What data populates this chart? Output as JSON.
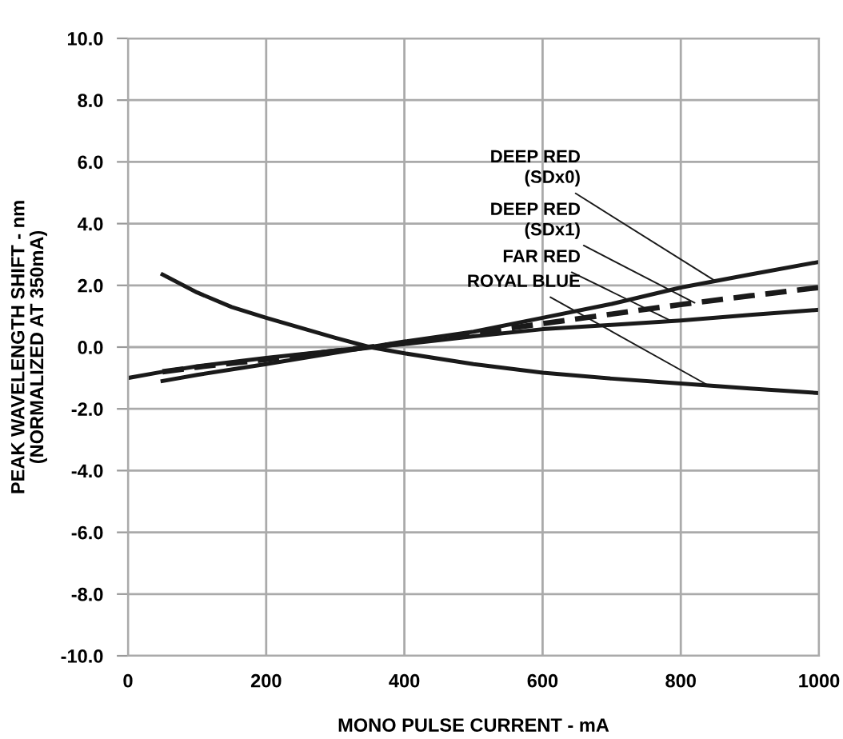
{
  "chart_data": {
    "type": "line",
    "xlabel": "MONO PULSE CURRENT - mA",
    "ylabel": "PEAK WAVELENGTH SHIFT - nm\n(NORMALIZED AT 350mA)",
    "xlim": [
      0,
      1000
    ],
    "xticks": [
      0,
      200,
      400,
      600,
      800,
      1000
    ],
    "ylim": [
      -10,
      10
    ],
    "yticks": [
      {
        "value": -10,
        "label": "-10.0"
      },
      {
        "value": -8,
        "label": "-8.0"
      },
      {
        "value": -6,
        "label": "-6.0"
      },
      {
        "value": -4,
        "label": "-4.0"
      },
      {
        "value": -2,
        "label": "-2.0"
      },
      {
        "value": 0,
        "label": "0.0"
      },
      {
        "value": 2,
        "label": "2.0"
      },
      {
        "value": 4,
        "label": "4.0"
      },
      {
        "value": 6,
        "label": "6.0"
      },
      {
        "value": 8,
        "label": "8.0"
      },
      {
        "value": 10,
        "label": "10.0"
      }
    ],
    "grid": true,
    "legend": false,
    "marker": "none",
    "series": [
      {
        "name": "DEEP RED\n(SDx0)",
        "color": "#1a1a1a",
        "line_style": "solid",
        "x": [
          50,
          100,
          200,
          300,
          350,
          400,
          500,
          600,
          700,
          800,
          900,
          1000
        ],
        "values": [
          -1.1,
          -0.9,
          -0.55,
          -0.18,
          0,
          0.18,
          0.5,
          0.95,
          1.4,
          1.93,
          2.35,
          2.76
        ]
      },
      {
        "name": "DEEP RED\n(SDx1)",
        "color": "#1a1a1a",
        "line_style": "dashed",
        "x": [
          50,
          100,
          200,
          300,
          350,
          400,
          500,
          600,
          700,
          800,
          900,
          1000
        ],
        "values": [
          -0.8,
          -0.65,
          -0.4,
          -0.13,
          0,
          0.13,
          0.45,
          0.76,
          1.07,
          1.38,
          1.66,
          1.93
        ]
      },
      {
        "name": "FAR RED",
        "color": "#1a1a1a",
        "line_style": "solid",
        "x": [
          0,
          50,
          100,
          200,
          300,
          350,
          400,
          500,
          600,
          700,
          800,
          900,
          1000
        ],
        "values": [
          -1.0,
          -0.8,
          -0.62,
          -0.35,
          -0.11,
          0,
          0.1,
          0.35,
          0.58,
          0.72,
          0.86,
          1.04,
          1.21
        ]
      },
      {
        "name": "ROYAL BLUE",
        "color": "#1a1a1a",
        "line_style": "solid",
        "x": [
          50,
          100,
          150,
          200,
          300,
          350,
          400,
          500,
          600,
          700,
          800,
          900,
          1000
        ],
        "values": [
          2.35,
          1.77,
          1.3,
          0.95,
          0.3,
          0,
          -0.2,
          -0.55,
          -0.83,
          -1.02,
          -1.18,
          -1.34,
          -1.49
        ]
      }
    ]
  }
}
